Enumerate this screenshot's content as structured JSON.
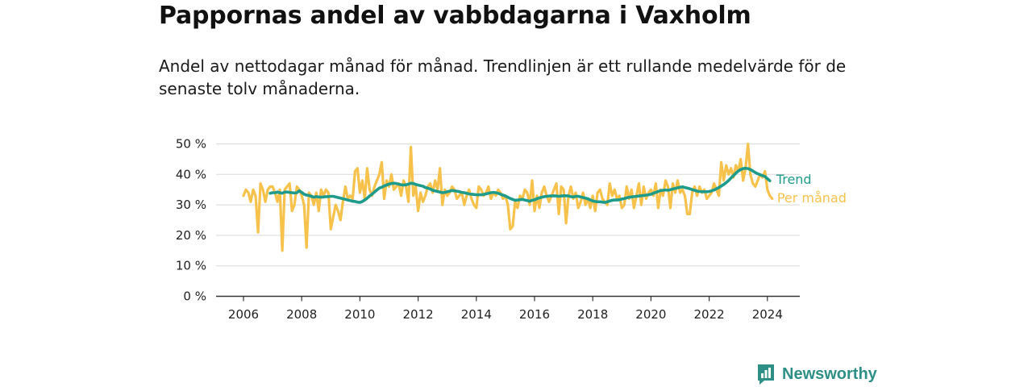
{
  "title": "Pappornas andel av vabbdagarna i Vaxholm",
  "subtitle": "Andel av nettodagar månad för månad. Trendlinjen är ett rullande medelvärde för de senaste tolv månaderna.",
  "brand": {
    "name": "Newsworthy",
    "icon": "newsworthy-logo-icon",
    "color": "#2d8f85"
  },
  "chart_data": {
    "type": "line",
    "x_range": [
      "2006-01",
      "2024-05"
    ],
    "ylim": [
      0,
      50
    ],
    "y_ticks": [
      "0 %",
      "10 %",
      "20 %",
      "30 %",
      "40 %",
      "50 %"
    ],
    "x_ticks": [
      "2006",
      "2008",
      "2010",
      "2012",
      "2014",
      "2016",
      "2018",
      "2020",
      "2022",
      "2024"
    ],
    "grid": true,
    "series": [
      {
        "name": "Per månad",
        "color": "#f7c24b",
        "start": "2006-01",
        "values": [
          33,
          35,
          34,
          31,
          35,
          33,
          21,
          37,
          35,
          31,
          35,
          36,
          36,
          34,
          31,
          35,
          15,
          35,
          36,
          37,
          28,
          30,
          36,
          35,
          33,
          30,
          16,
          34,
          33,
          30,
          34,
          28,
          35,
          33,
          35,
          34,
          22,
          26,
          30,
          28,
          25,
          31,
          36,
          32,
          33,
          32,
          41,
          42,
          34,
          38,
          32,
          42,
          35,
          33,
          36,
          38,
          40,
          44,
          32,
          38,
          36,
          40,
          35,
          36,
          37,
          33,
          38,
          36,
          31,
          49,
          33,
          36,
          28,
          34,
          31,
          33,
          36,
          37,
          34,
          38,
          35,
          42,
          30,
          35,
          33,
          34,
          36,
          35,
          32,
          33,
          34,
          30,
          33,
          35,
          32,
          30,
          29,
          36,
          35,
          33,
          34,
          36,
          32,
          34,
          33,
          35,
          34,
          32,
          33,
          30,
          22,
          23,
          31,
          29,
          33,
          32,
          35,
          34,
          30,
          38,
          28,
          33,
          29,
          34,
          36,
          33,
          31,
          33,
          35,
          37,
          27,
          36,
          35,
          24,
          33,
          36,
          32,
          34,
          29,
          31,
          34,
          30,
          32,
          29,
          33,
          28,
          34,
          35,
          32,
          31,
          30,
          37,
          33,
          35,
          32,
          33,
          29,
          30,
          36,
          32,
          35,
          29,
          33,
          37,
          30,
          36,
          32,
          34,
          35,
          33,
          37,
          29,
          35,
          33,
          38,
          36,
          29,
          37,
          34,
          38,
          34,
          35,
          33,
          27,
          27,
          34,
          36,
          33,
          36,
          34,
          35,
          32,
          33,
          34,
          37,
          35,
          33,
          44,
          38,
          43,
          40,
          42,
          39,
          43,
          41,
          45,
          38,
          42,
          50,
          40,
          37,
          36,
          38,
          40,
          39,
          41,
          35,
          33,
          32
        ]
      },
      {
        "name": "Trend",
        "color": "#1e9b8a",
        "start": "2006-12",
        "values": [
          33.8,
          34,
          34,
          34.2,
          34,
          33.8,
          34.2,
          34.2,
          34.1,
          34,
          33.9,
          34,
          34.6,
          34.1,
          33.5,
          33.2,
          33.1,
          32.8,
          32.5,
          32.7,
          32.6,
          32.5,
          32.6,
          32.7,
          32.7,
          32.8,
          32.8,
          32.6,
          32.4,
          32.2,
          32,
          31.8,
          31.6,
          31.4,
          31.2,
          31.1,
          30.9,
          30.8,
          31.1,
          31.6,
          32.2,
          32.9,
          33.5,
          34.2,
          34.9,
          35.5,
          35.8,
          36.2,
          36.5,
          36.8,
          37,
          37.1,
          37,
          36.8,
          36.6,
          36.5,
          36.6,
          36.8,
          37.1,
          37,
          36.7,
          36.5,
          36.3,
          36.1,
          35.7,
          35.5,
          35.2,
          34.8,
          34.6,
          34.4,
          34.2,
          34,
          34.1,
          34.3,
          34.5,
          34.7,
          34.6,
          34.5,
          34.3,
          34.1,
          34,
          33.8,
          33.6,
          33.5,
          33.4,
          33.3,
          33.3,
          33.3,
          33.4,
          33.6,
          33.8,
          34,
          34.1,
          34,
          33.8,
          33.5,
          33.2,
          32.9,
          32.5,
          32.1,
          31.8,
          31.5,
          31.6,
          31.7,
          31.8,
          31.6,
          31.4,
          31.2,
          31.5,
          31.7,
          32,
          32.3,
          32.5,
          32.7,
          32.8,
          32.9,
          32.9,
          33,
          32.9,
          32.8,
          32.9,
          33,
          33,
          32.9,
          32.7,
          32.6,
          32.8,
          32.8,
          32.6,
          32.4,
          32.2,
          32,
          31.6,
          31.3,
          31.1,
          31,
          31,
          30.9,
          30.8,
          31,
          31.3,
          31.5,
          31.6,
          31.6,
          31.7,
          31.9,
          32.1,
          32.3,
          32.5,
          32.6,
          32.7,
          32.8,
          32.9,
          33,
          33.1,
          33.2,
          33.3,
          33.5,
          33.8,
          34.1,
          34.4,
          34.7,
          34.8,
          34.9,
          34.8,
          35,
          35.2,
          35.4,
          35.6,
          35.8,
          35.9,
          35.7,
          35.5,
          35.3,
          35,
          34.8,
          34.5,
          34.4,
          34.3,
          34.3,
          34.3,
          34.4,
          34.6,
          34.9,
          35.3,
          35.7,
          36.2,
          36.7,
          37.3,
          38,
          38.8,
          39.6,
          40.4,
          41.1,
          41.6,
          41.9,
          42,
          41.9,
          41.6,
          41.1,
          40.6,
          40.2,
          39.9,
          39.6,
          39.3,
          38.6,
          37.9
        ]
      }
    ]
  }
}
